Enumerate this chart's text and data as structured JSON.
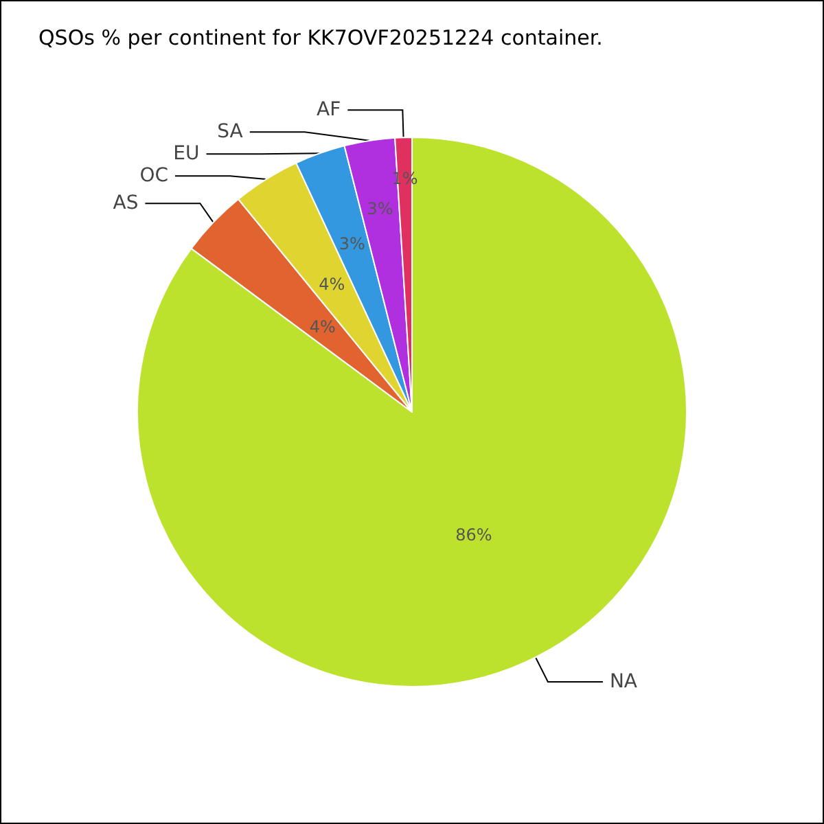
{
  "chart_data": {
    "type": "pie",
    "title": "QSOs % per continent for KK7OVF20251224 container.",
    "categories": [
      "NA",
      "AS",
      "OC",
      "EU",
      "SA",
      "AF"
    ],
    "values": [
      86,
      4,
      4,
      3,
      3,
      1
    ],
    "colors": [
      "#bde22e",
      "#e06330",
      "#e0d530",
      "#3398e0",
      "#b030e0",
      "#e03060"
    ],
    "value_labels": [
      "86%",
      "4%",
      "4%",
      "3%",
      "3%",
      "1%"
    ],
    "legend": false
  }
}
